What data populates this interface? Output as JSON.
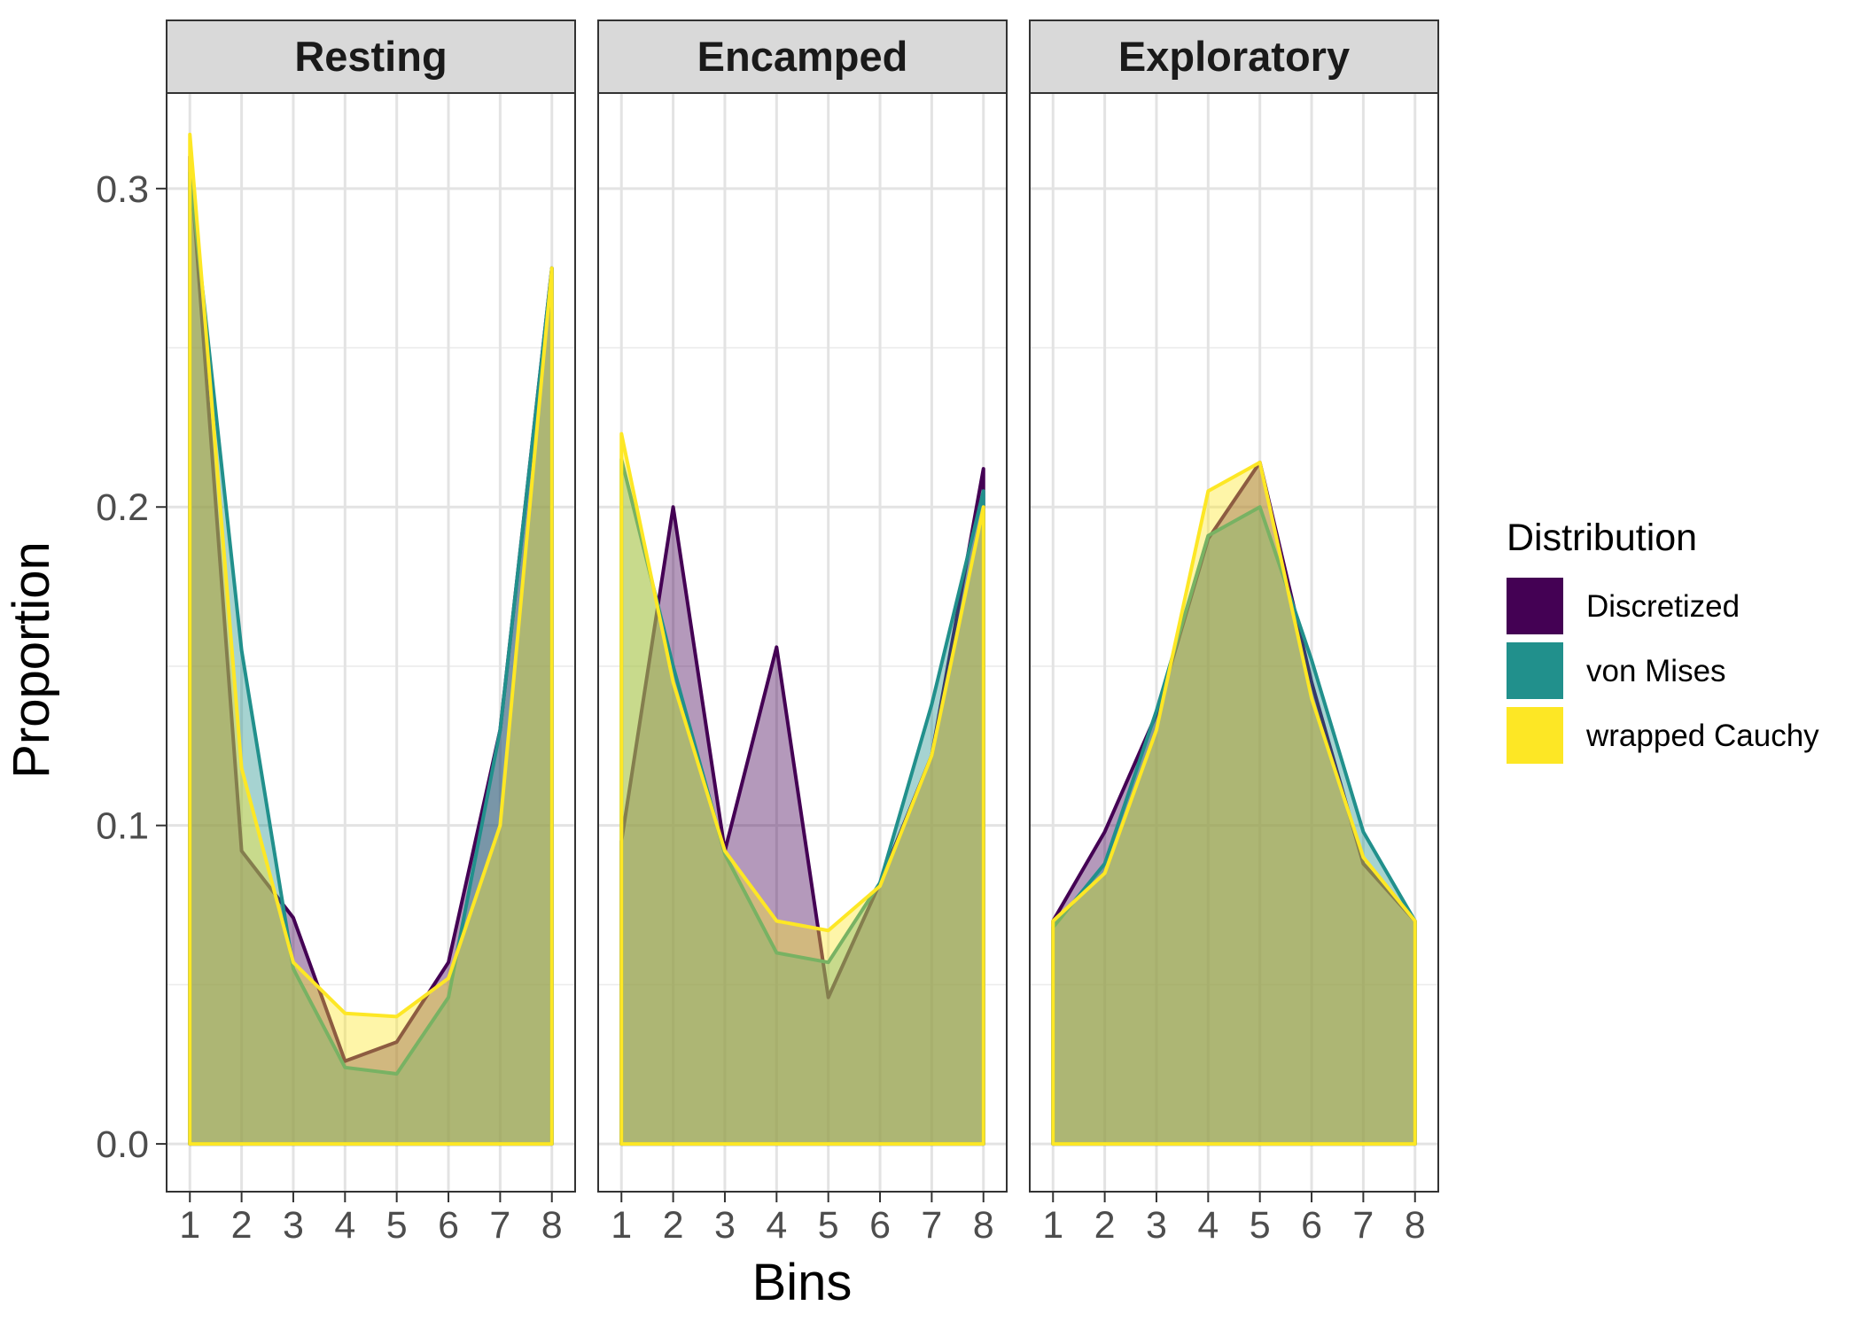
{
  "chart_data": {
    "type": "area",
    "xlabel": "Bins",
    "ylabel": "Proportion",
    "x": [
      1,
      2,
      3,
      4,
      5,
      6,
      7,
      8
    ],
    "x_ticks": [
      "1",
      "2",
      "3",
      "4",
      "5",
      "6",
      "7",
      "8"
    ],
    "y_ticks": [
      "0.0",
      "0.1",
      "0.2",
      "0.3"
    ],
    "ylim": [
      -0.015,
      0.33
    ],
    "grid": true,
    "legend": {
      "title": "Distribution",
      "position": "right",
      "entries": [
        "Discretized",
        "von Mises",
        "wrapped Cauchy"
      ]
    },
    "series_colors": {
      "Discretized": "#440154",
      "von Mises": "#21908C",
      "wrapped Cauchy": "#FDE725"
    },
    "panels": [
      {
        "label": "Resting",
        "series": [
          {
            "name": "Discretized",
            "values": [
              0.31,
              0.092,
              0.071,
              0.026,
              0.032,
              0.057,
              0.13,
              0.275
            ]
          },
          {
            "name": "von Mises",
            "values": [
              0.305,
              0.155,
              0.055,
              0.024,
              0.022,
              0.046,
              0.13,
              0.275
            ]
          },
          {
            "name": "wrapped Cauchy",
            "values": [
              0.317,
              0.118,
              0.057,
              0.041,
              0.04,
              0.052,
              0.1,
              0.275
            ]
          }
        ]
      },
      {
        "label": "Encamped",
        "series": [
          {
            "name": "Discretized",
            "values": [
              0.095,
              0.2,
              0.092,
              0.156,
              0.046,
              0.082,
              0.122,
              0.212
            ]
          },
          {
            "name": "von Mises",
            "values": [
              0.215,
              0.15,
              0.091,
              0.06,
              0.057,
              0.082,
              0.138,
              0.205
            ]
          },
          {
            "name": "wrapped Cauchy",
            "values": [
              0.223,
              0.145,
              0.092,
              0.07,
              0.067,
              0.081,
              0.122,
              0.2
            ]
          }
        ]
      },
      {
        "label": "Exploratory",
        "series": [
          {
            "name": "Discretized",
            "values": [
              0.07,
              0.098,
              0.135,
              0.19,
              0.214,
              0.145,
              0.088,
              0.07
            ]
          },
          {
            "name": "von Mises",
            "values": [
              0.068,
              0.088,
              0.136,
              0.191,
              0.2,
              0.152,
              0.098,
              0.07
            ]
          },
          {
            "name": "wrapped Cauchy",
            "values": [
              0.07,
              0.085,
              0.13,
              0.205,
              0.214,
              0.14,
              0.09,
              0.07
            ]
          }
        ]
      }
    ]
  }
}
